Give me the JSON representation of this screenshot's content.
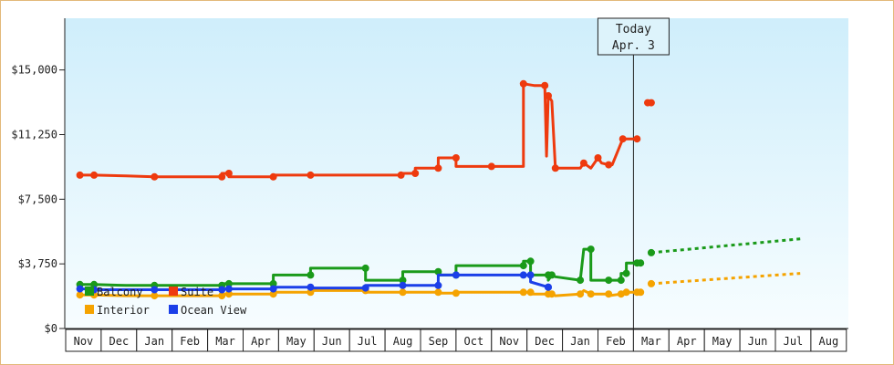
{
  "chart_data": {
    "type": "line",
    "title": "",
    "xlabel": "",
    "ylabel": "",
    "ylim": [
      0,
      15000
    ],
    "y_ticks": [
      "$0",
      "$3,750",
      "$7,500",
      "$11,250",
      "$15,000"
    ],
    "x_ticks": [
      "Nov",
      "Dec",
      "Jan",
      "Feb",
      "Mar",
      "Apr",
      "May",
      "Jun",
      "Jul",
      "Aug",
      "Sep",
      "Oct",
      "Nov",
      "Dec",
      "Jan",
      "Feb",
      "Mar",
      "Apr",
      "May",
      "Jun",
      "Jul",
      "Aug"
    ],
    "today_marker": {
      "line1": "Today",
      "line2": "Apr. 3",
      "x": 16.0
    },
    "grid": false,
    "legend_placement": "bottom-left",
    "series": [
      {
        "name": "Balcony",
        "color": "#1a9a1a",
        "points": [
          [
            -0.1,
            2550
          ],
          [
            0.3,
            2550
          ],
          [
            0.3,
            2550
          ],
          [
            1.2,
            2500
          ],
          [
            2.0,
            2500
          ],
          [
            2.0,
            2500
          ],
          [
            3.9,
            2500
          ],
          [
            3.9,
            2600
          ],
          [
            4.1,
            2600
          ],
          [
            4.1,
            2600
          ],
          [
            5.35,
            2600
          ],
          [
            5.35,
            3100
          ],
          [
            6.4,
            3100
          ],
          [
            6.4,
            3500
          ],
          [
            7.95,
            3500
          ],
          [
            7.95,
            2800
          ],
          [
            9.0,
            2800
          ],
          [
            9.0,
            3300
          ],
          [
            10.0,
            3300
          ],
          [
            10.0,
            3100
          ],
          [
            10.5,
            3100
          ],
          [
            10.5,
            3650
          ],
          [
            12.4,
            3650
          ],
          [
            12.4,
            3900
          ],
          [
            12.6,
            3900
          ],
          [
            12.6,
            3100
          ],
          [
            13.1,
            3100
          ],
          [
            13.1,
            2800
          ],
          [
            13.2,
            3100
          ],
          [
            13.3,
            3000
          ],
          [
            14.0,
            2800
          ],
          [
            14.1,
            4600
          ],
          [
            14.3,
            4600
          ],
          [
            14.3,
            2800
          ],
          [
            14.8,
            2800
          ],
          [
            14.8,
            2800
          ],
          [
            15.15,
            2800
          ],
          [
            15.15,
            3200
          ],
          [
            15.3,
            3200
          ],
          [
            15.3,
            3800
          ],
          [
            15.6,
            3800
          ],
          [
            15.7,
            3800
          ],
          [
            15.7,
            3800
          ]
        ],
        "projection": [
          [
            16.0,
            4400
          ],
          [
            20.2,
            5200
          ]
        ]
      },
      {
        "name": "Suite",
        "color": "#ee3a0e",
        "points": [
          [
            -0.1,
            8900
          ],
          [
            0.3,
            8900
          ],
          [
            0.3,
            8900
          ],
          [
            1.2,
            8850
          ],
          [
            2.0,
            8800
          ],
          [
            2.0,
            8800
          ],
          [
            3.9,
            8800
          ],
          [
            3.9,
            9000
          ],
          [
            4.1,
            9000
          ],
          [
            4.1,
            8800
          ],
          [
            5.35,
            8800
          ],
          [
            5.35,
            8900
          ],
          [
            6.4,
            8900
          ],
          [
            6.4,
            8900
          ],
          [
            8.95,
            8900
          ],
          [
            8.95,
            9000
          ],
          [
            9.35,
            9000
          ],
          [
            9.35,
            9300
          ],
          [
            10.0,
            9300
          ],
          [
            10.0,
            9900
          ],
          [
            10.5,
            9900
          ],
          [
            10.5,
            9400
          ],
          [
            11.5,
            9400
          ],
          [
            12.4,
            9400
          ],
          [
            12.4,
            14200
          ],
          [
            12.7,
            14100
          ],
          [
            13.0,
            14100
          ],
          [
            13.05,
            10000
          ],
          [
            13.1,
            13500
          ],
          [
            13.2,
            13200
          ],
          [
            13.3,
            9300
          ],
          [
            14.0,
            9300
          ],
          [
            14.1,
            9600
          ],
          [
            14.3,
            9300
          ],
          [
            14.5,
            9900
          ],
          [
            14.6,
            9600
          ],
          [
            14.8,
            9500
          ],
          [
            14.9,
            9500
          ],
          [
            15.2,
            11000
          ],
          [
            15.6,
            11000
          ]
        ],
        "segment_2": [
          [
            15.9,
            13100
          ],
          [
            16.0,
            13100
          ]
        ],
        "segment_2_start": 15.9
      },
      {
        "name": "Interior",
        "color": "#f5a300",
        "points": [
          [
            -0.1,
            1950
          ],
          [
            0.3,
            1950
          ],
          [
            0.3,
            1950
          ],
          [
            1.2,
            1900
          ],
          [
            2.0,
            1900
          ],
          [
            2.0,
            1900
          ],
          [
            3.9,
            1900
          ],
          [
            3.9,
            2000
          ],
          [
            4.1,
            2000
          ],
          [
            4.1,
            2000
          ],
          [
            5.35,
            2000
          ],
          [
            5.35,
            2100
          ],
          [
            6.4,
            2100
          ],
          [
            6.4,
            2200
          ],
          [
            7.95,
            2200
          ],
          [
            7.95,
            2100
          ],
          [
            9.0,
            2100
          ],
          [
            9.0,
            2100
          ],
          [
            10.0,
            2100
          ],
          [
            10.0,
            2050
          ],
          [
            10.5,
            2050
          ],
          [
            10.5,
            2100
          ],
          [
            12.4,
            2100
          ],
          [
            12.4,
            2100
          ],
          [
            12.6,
            2100
          ],
          [
            12.6,
            2000
          ],
          [
            13.1,
            2000
          ],
          [
            13.1,
            2000
          ],
          [
            13.2,
            2000
          ],
          [
            13.3,
            1900
          ],
          [
            14.0,
            2000
          ],
          [
            14.1,
            2200
          ],
          [
            14.3,
            2000
          ],
          [
            14.3,
            2000
          ],
          [
            14.8,
            2000
          ],
          [
            14.8,
            1900
          ],
          [
            15.15,
            2000
          ],
          [
            15.15,
            2000
          ],
          [
            15.3,
            2100
          ],
          [
            15.3,
            2100
          ],
          [
            15.6,
            2100
          ],
          [
            15.7,
            2100
          ],
          [
            15.7,
            2100
          ]
        ],
        "projection": [
          [
            16.0,
            2600
          ],
          [
            20.2,
            3200
          ]
        ]
      },
      {
        "name": "Ocean View",
        "color": "#1b3fe8",
        "points": [
          [
            -0.1,
            2300
          ],
          [
            0.3,
            2300
          ],
          [
            0.3,
            2250
          ],
          [
            1.2,
            2250
          ],
          [
            2.0,
            2250
          ],
          [
            2.0,
            2250
          ],
          [
            3.9,
            2250
          ],
          [
            3.9,
            2300
          ],
          [
            4.1,
            2300
          ],
          [
            4.1,
            2300
          ],
          [
            5.35,
            2300
          ],
          [
            5.35,
            2400
          ],
          [
            6.4,
            2400
          ],
          [
            6.4,
            2350
          ],
          [
            7.95,
            2350
          ],
          [
            7.95,
            2500
          ],
          [
            9.0,
            2500
          ],
          [
            9.0,
            2500
          ],
          [
            10.0,
            2500
          ],
          [
            10.0,
            3100
          ],
          [
            10.5,
            3100
          ],
          [
            10.5,
            3100
          ],
          [
            12.4,
            3100
          ],
          [
            12.4,
            3100
          ],
          [
            12.6,
            3100
          ],
          [
            12.6,
            2700
          ],
          [
            13.1,
            2400
          ],
          [
            13.1,
            2400
          ]
        ]
      }
    ]
  }
}
